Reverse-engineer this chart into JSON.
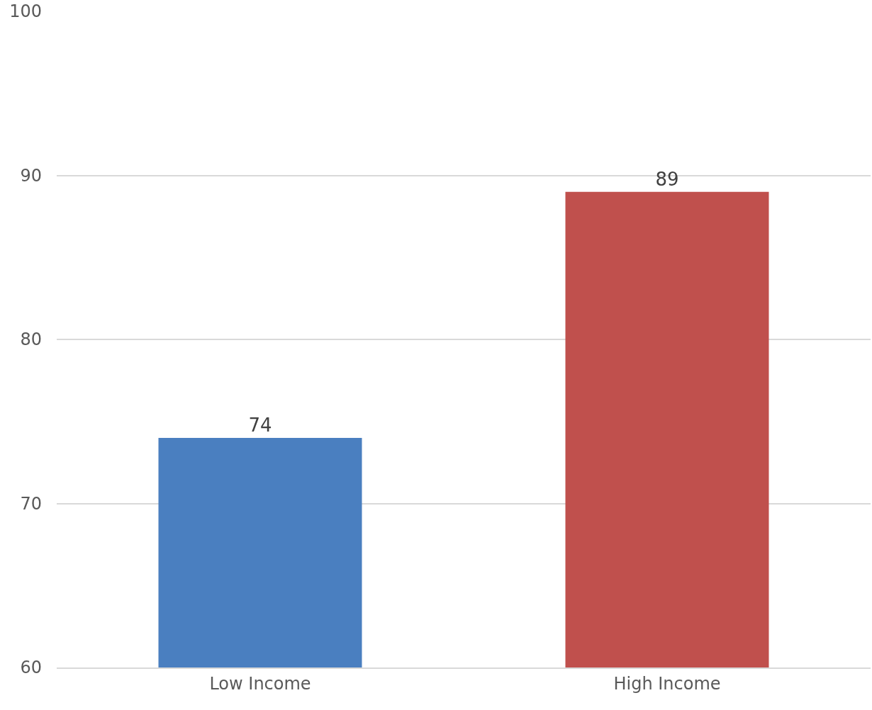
{
  "chart_data": {
    "type": "bar",
    "categories": [
      "Low Income",
      "High Income"
    ],
    "values": [
      74,
      89
    ],
    "colors": [
      "#4a7fc0",
      "#c0504d"
    ],
    "ylim": [
      60,
      100
    ],
    "yticks": [
      60,
      70,
      80,
      90,
      100
    ],
    "grid": "y",
    "data_labels": true
  }
}
